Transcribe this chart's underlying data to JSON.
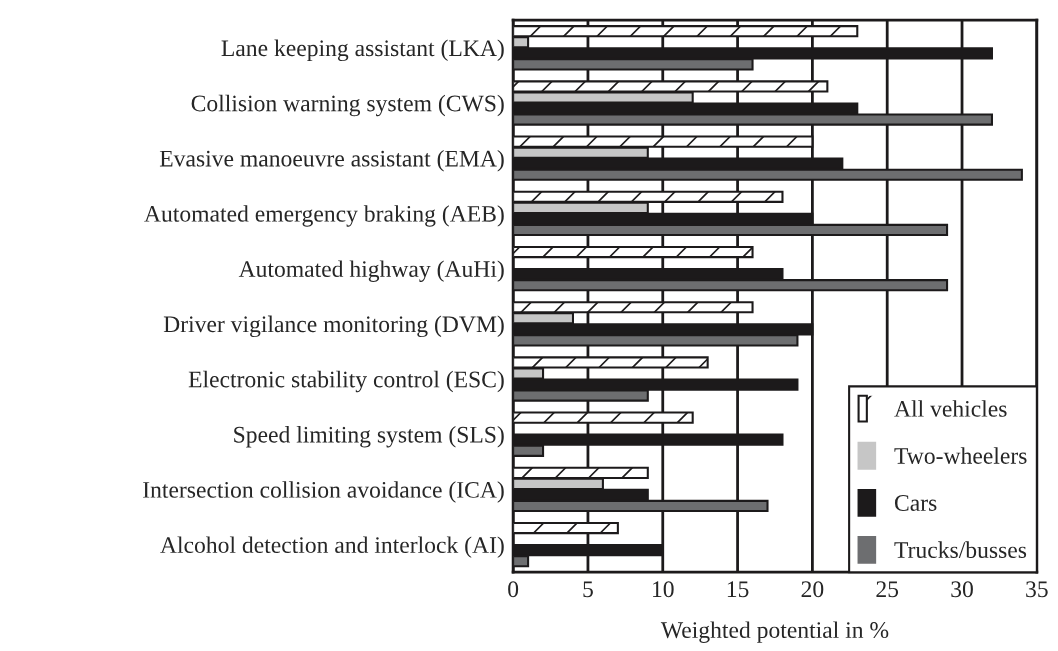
{
  "chart_data": {
    "type": "bar",
    "orientation": "horizontal",
    "xlabel": "Weighted potential in %",
    "categories": [
      "Lane keeping assistant (LKA)",
      "Collision warning system (CWS)",
      "Evasive manoeuvre assistant (EMA)",
      "Automated emergency braking (AEB)",
      "Automated highway (AuHi)",
      "Driver vigilance monitoring (DVM)",
      "Electronic stability control (ESC)",
      "Speed limiting system (SLS)",
      "Intersection collision avoidance (ICA)",
      "Alcohol detection and interlock (AI)"
    ],
    "series": [
      {
        "name": "All vehicles",
        "color": "#ffffff",
        "values": [
          23,
          21,
          20,
          18,
          16,
          16,
          13,
          12,
          9,
          7
        ]
      },
      {
        "name": "Two-wheelers",
        "color": "#c6c6c6",
        "values": [
          1,
          12,
          9,
          9,
          null,
          4,
          2,
          null,
          6,
          null
        ]
      },
      {
        "name": "Cars",
        "color": "#1c1a1b",
        "values": [
          32,
          23,
          22,
          20,
          18,
          20,
          19,
          18,
          9,
          10
        ]
      },
      {
        "name": "Trucks/busses",
        "color": "#6d6e70",
        "values": [
          16,
          32,
          34,
          29,
          29,
          19,
          9,
          2,
          17,
          1
        ]
      }
    ],
    "xlim": [
      0,
      35
    ],
    "xticks": [
      0,
      5,
      10,
      15,
      20,
      25,
      30,
      35
    ],
    "grid": "x",
    "legend": "bottom right"
  }
}
